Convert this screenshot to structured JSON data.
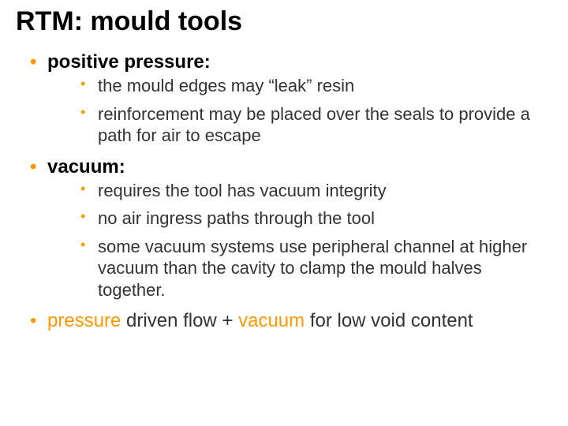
{
  "title": "RTM: mould tools",
  "bullet_color": "#ff9900",
  "text_color": "#333333",
  "title_color": "#000000",
  "background_color": "#ffffff",
  "title_fontsize": 34,
  "level1_fontsize": 24,
  "level2_fontsize": 22,
  "sections": [
    {
      "heading": "positive pressure:",
      "items": [
        "the mould edges may “leak” resin",
        "reinforcement may be placed over the seals to provide a path for air to escape"
      ]
    },
    {
      "heading": "vacuum:",
      "items": [
        "requires the tool has vacuum integrity",
        "no air ingress paths through the tool",
        "some vacuum systems use peripheral channel at higher vacuum than the cavity to clamp the mould halves together."
      ]
    }
  ],
  "footer": {
    "pre": "",
    "hl1": "pressure",
    "mid1": " driven flow + ",
    "hl2": "vacuum",
    "mid2": " for low void content"
  }
}
